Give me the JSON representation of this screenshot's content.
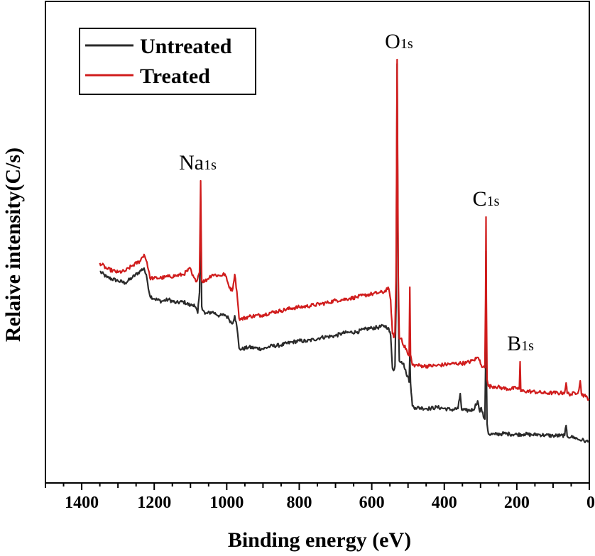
{
  "chart_data": {
    "type": "line",
    "title": "",
    "xlabel": "Binding energy (eV)",
    "ylabel": "Relaive intensity(C/s)",
    "xlim": [
      1500,
      0
    ],
    "ylim": [
      0,
      100
    ],
    "x_reversed": true,
    "y_ticks_shown": false,
    "xticks": [
      1400,
      1200,
      1000,
      800,
      600,
      400,
      200,
      0
    ],
    "xtick_labels": [
      "1400",
      "1200",
      "1000",
      "800",
      "600",
      "400",
      "200",
      "0"
    ],
    "legend": {
      "placement": "top-left",
      "entries": [
        {
          "label": "Untreated",
          "color": "#2a2a2a"
        },
        {
          "label": "Treated",
          "color": "#d01c1c"
        }
      ]
    },
    "annotations": [
      {
        "main": "Na",
        "sub": "1s",
        "x": 1080
      },
      {
        "main": "O",
        "sub": "1s",
        "x": 525
      },
      {
        "main": "C",
        "sub": "1s",
        "x": 285
      },
      {
        "main": "B",
        "sub": "1s",
        "x": 190
      }
    ],
    "series": [
      {
        "name": "Untreated",
        "color": "#2a2a2a",
        "points": [
          [
            1350,
            46.2
          ],
          [
            1330,
            44.8
          ],
          [
            1300,
            44.0
          ],
          [
            1280,
            43.5
          ],
          [
            1260,
            44.8
          ],
          [
            1240,
            46.2
          ],
          [
            1228,
            47.0
          ],
          [
            1220,
            44.5
          ],
          [
            1212,
            40.5
          ],
          [
            1200,
            39.8
          ],
          [
            1180,
            39.2
          ],
          [
            1160,
            39.6
          ],
          [
            1140,
            38.8
          ],
          [
            1120,
            39.1
          ],
          [
            1100,
            38.2
          ],
          [
            1090,
            38.5
          ],
          [
            1080,
            36.4
          ],
          [
            1075,
            41.3
          ],
          [
            1072,
            61.0
          ],
          [
            1069,
            38.0
          ],
          [
            1060,
            36.2
          ],
          [
            1040,
            36.7
          ],
          [
            1020,
            35.8
          ],
          [
            1005,
            36.0
          ],
          [
            995,
            35.2
          ],
          [
            985,
            33.9
          ],
          [
            978,
            35.8
          ],
          [
            972,
            33.2
          ],
          [
            966,
            28.2
          ],
          [
            960,
            27.9
          ],
          [
            940,
            28.4
          ],
          [
            900,
            28.0
          ],
          [
            880,
            28.6
          ],
          [
            850,
            28.9
          ],
          [
            820,
            29.6
          ],
          [
            800,
            29.9
          ],
          [
            780,
            29.8
          ],
          [
            760,
            30.2
          ],
          [
            740,
            30.7
          ],
          [
            720,
            30.9
          ],
          [
            700,
            31.1
          ],
          [
            680,
            31.7
          ],
          [
            660,
            31.9
          ],
          [
            640,
            32.0
          ],
          [
            620,
            32.6
          ],
          [
            600,
            32.9
          ],
          [
            580,
            33.1
          ],
          [
            565,
            33.4
          ],
          [
            555,
            33.0
          ],
          [
            548,
            31.2
          ],
          [
            543,
            23.5
          ],
          [
            538,
            23.2
          ],
          [
            536,
            24.0
          ],
          [
            533,
            38.0
          ],
          [
            530,
            95.0
          ],
          [
            527,
            38.0
          ],
          [
            524,
            25.2
          ],
          [
            518,
            25.0
          ],
          [
            512,
            24.6
          ],
          [
            505,
            22.2
          ],
          [
            500,
            21.4
          ],
          [
            497,
            20.2
          ],
          [
            495,
            26.5
          ],
          [
            493,
            20.0
          ],
          [
            488,
            14.6
          ],
          [
            480,
            14.2
          ],
          [
            460,
            14.1
          ],
          [
            440,
            14.0
          ],
          [
            420,
            14.3
          ],
          [
            400,
            14.0
          ],
          [
            380,
            13.7
          ],
          [
            362,
            14.0
          ],
          [
            356,
            17.5
          ],
          [
            352,
            13.7
          ],
          [
            340,
            13.5
          ],
          [
            320,
            13.7
          ],
          [
            308,
            15.8
          ],
          [
            302,
            13.2
          ],
          [
            298,
            14.2
          ],
          [
            292,
            12.0
          ],
          [
            288,
            11.5
          ],
          [
            286,
            24.0
          ],
          [
            285,
            51.0
          ],
          [
            284,
            24.0
          ],
          [
            282,
            10.4
          ],
          [
            278,
            8.0
          ],
          [
            260,
            7.9
          ],
          [
            240,
            8.1
          ],
          [
            220,
            8.0
          ],
          [
            200,
            7.9
          ],
          [
            180,
            8.0
          ],
          [
            160,
            7.8
          ],
          [
            140,
            7.9
          ],
          [
            120,
            7.7
          ],
          [
            100,
            7.6
          ],
          [
            80,
            7.6
          ],
          [
            68,
            7.7
          ],
          [
            64,
            10.0
          ],
          [
            61,
            7.5
          ],
          [
            50,
            7.3
          ],
          [
            40,
            7.2
          ],
          [
            30,
            6.7
          ],
          [
            20,
            6.6
          ],
          [
            10,
            6.3
          ],
          [
            0,
            6.1
          ]
        ]
      },
      {
        "name": "Treated",
        "color": "#d01c1c",
        "points": [
          [
            1350,
            48.2
          ],
          [
            1330,
            46.8
          ],
          [
            1300,
            46.0
          ],
          [
            1280,
            46.3
          ],
          [
            1260,
            47.6
          ],
          [
            1240,
            48.6
          ],
          [
            1228,
            50.2
          ],
          [
            1220,
            48.4
          ],
          [
            1212,
            44.7
          ],
          [
            1200,
            44.6
          ],
          [
            1180,
            44.7
          ],
          [
            1160,
            45.0
          ],
          [
            1140,
            45.2
          ],
          [
            1120,
            45.5
          ],
          [
            1100,
            46.9
          ],
          [
            1095,
            45.3
          ],
          [
            1085,
            43.8
          ],
          [
            1075,
            46.0
          ],
          [
            1072,
            67.5
          ],
          [
            1069,
            44.0
          ],
          [
            1060,
            43.9
          ],
          [
            1040,
            45.5
          ],
          [
            1020,
            45.2
          ],
          [
            1005,
            45.6
          ],
          [
            995,
            43.0
          ],
          [
            985,
            41.6
          ],
          [
            978,
            45.5
          ],
          [
            972,
            41.5
          ],
          [
            966,
            35.2
          ],
          [
            960,
            35.0
          ],
          [
            940,
            35.6
          ],
          [
            900,
            36.0
          ],
          [
            880,
            36.5
          ],
          [
            850,
            37.0
          ],
          [
            820,
            37.6
          ],
          [
            800,
            37.8
          ],
          [
            780,
            38.0
          ],
          [
            760,
            38.3
          ],
          [
            740,
            38.6
          ],
          [
            720,
            38.9
          ],
          [
            700,
            39.4
          ],
          [
            680,
            39.6
          ],
          [
            660,
            39.9
          ],
          [
            640,
            40.2
          ],
          [
            620,
            40.6
          ],
          [
            600,
            40.9
          ],
          [
            580,
            41.2
          ],
          [
            565,
            41.4
          ],
          [
            555,
            42.5
          ],
          [
            548,
            39.5
          ],
          [
            543,
            31.6
          ],
          [
            538,
            30.8
          ],
          [
            536,
            32.0
          ],
          [
            533,
            45.0
          ],
          [
            530,
            96.0
          ],
          [
            527,
            46.0
          ],
          [
            524,
            30.4
          ],
          [
            518,
            30.5
          ],
          [
            512,
            28.8
          ],
          [
            505,
            28.0
          ],
          [
            500,
            26.6
          ],
          [
            497,
            26.4
          ],
          [
            495,
            42.5
          ],
          [
            493,
            26.6
          ],
          [
            488,
            24.2
          ],
          [
            480,
            24.2
          ],
          [
            460,
            24.0
          ],
          [
            440,
            24.0
          ],
          [
            420,
            24.1
          ],
          [
            400,
            24.3
          ],
          [
            380,
            24.5
          ],
          [
            360,
            24.6
          ],
          [
            340,
            24.7
          ],
          [
            320,
            25.3
          ],
          [
            308,
            26.0
          ],
          [
            302,
            25.4
          ],
          [
            298,
            24.2
          ],
          [
            292,
            23.8
          ],
          [
            288,
            23.6
          ],
          [
            286,
            40.0
          ],
          [
            285,
            59.0
          ],
          [
            284,
            40.0
          ],
          [
            282,
            20.8
          ],
          [
            278,
            19.2
          ],
          [
            260,
            19.2
          ],
          [
            240,
            18.8
          ],
          [
            220,
            18.6
          ],
          [
            200,
            18.8
          ],
          [
            193,
            18.6
          ],
          [
            191,
            25.0
          ],
          [
            189,
            18.0
          ],
          [
            180,
            18.1
          ],
          [
            160,
            18.0
          ],
          [
            140,
            17.8
          ],
          [
            120,
            17.6
          ],
          [
            100,
            17.7
          ],
          [
            80,
            17.6
          ],
          [
            68,
            17.8
          ],
          [
            64,
            20.0
          ],
          [
            61,
            17.6
          ],
          [
            50,
            17.3
          ],
          [
            30,
            18.0
          ],
          [
            25,
            20.5
          ],
          [
            22,
            17.5
          ],
          [
            10,
            16.8
          ],
          [
            0,
            16.2
          ]
        ]
      }
    ]
  }
}
